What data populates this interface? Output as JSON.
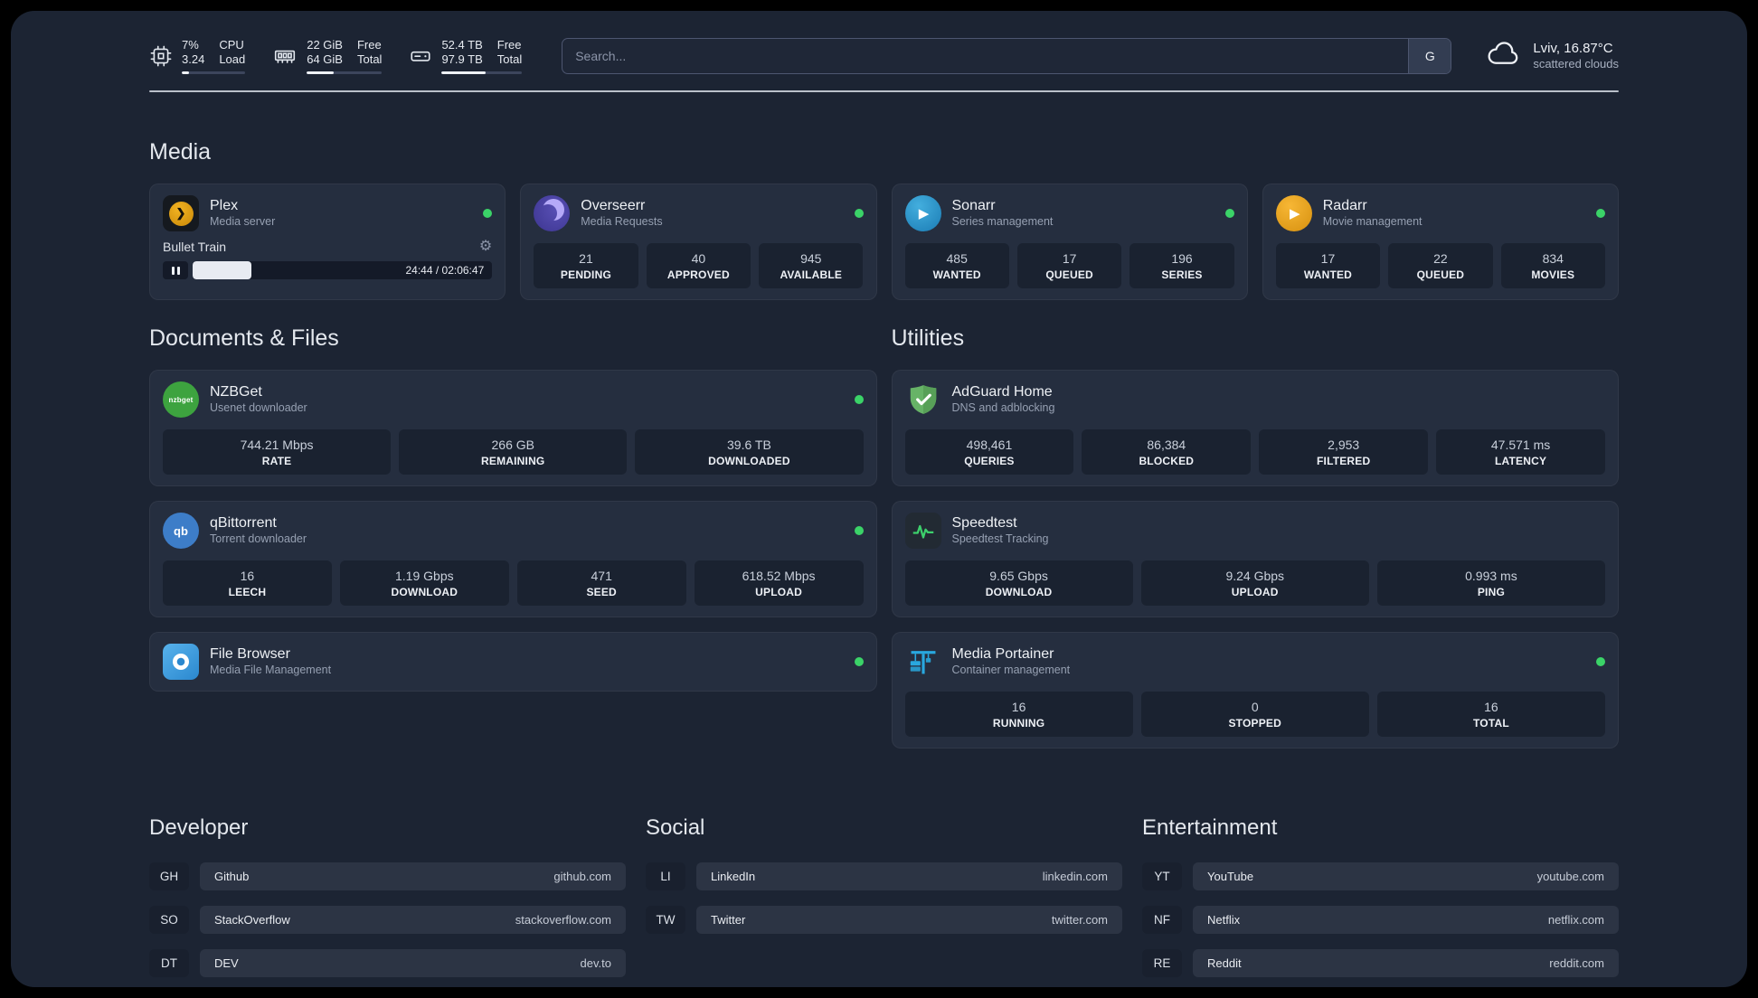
{
  "colors": {
    "background": "#1c2433",
    "card": "#252e3f",
    "tile": "#1a2230",
    "status_online": "#3bd368",
    "plex_amber": "#e5a00d",
    "adguard_green": "#67b367",
    "portainer_blue": "#29a8df",
    "divider": "#ccd1da"
  },
  "topbar": {
    "widgets": [
      {
        "icon": "cpu-chip-icon",
        "col1_top": "7%",
        "col1_bottom": "3.24",
        "col2_top": "CPU",
        "col2_bottom": "Load",
        "bar_pct": 12
      },
      {
        "icon": "memory-icon",
        "col1_top": "22 GiB",
        "col1_bottom": "64 GiB",
        "col2_top": "Free",
        "col2_bottom": "Total",
        "bar_pct": 36
      },
      {
        "icon": "disk-icon",
        "col1_top": "52.4 TB",
        "col1_bottom": "97.9 TB",
        "col2_top": "Free",
        "col2_bottom": "Total",
        "bar_pct": 55
      }
    ],
    "search": {
      "placeholder": "Search...",
      "engine_label": "G"
    },
    "weather": {
      "icon": "cloud-icon",
      "location": "Lviv, 16.87°C",
      "condition": "scattered clouds"
    }
  },
  "media": {
    "title": "Media",
    "plex": {
      "name": "Plex",
      "subtitle": "Media server",
      "status": "online",
      "icon": "plex-icon",
      "now_playing": "Bullet Train",
      "time": "24:44 / 02:06:47",
      "progress_pct": 19.5,
      "play_glyph": "❯"
    },
    "overseerr": {
      "name": "Overseerr",
      "subtitle": "Media Requests",
      "status": "online",
      "icon": "overseerr-icon",
      "stats": [
        {
          "value": "21",
          "label": "PENDING"
        },
        {
          "value": "40",
          "label": "APPROVED"
        },
        {
          "value": "945",
          "label": "AVAILABLE"
        }
      ]
    },
    "sonarr": {
      "name": "Sonarr",
      "subtitle": "Series management",
      "status": "online",
      "icon": "sonarr-icon",
      "glyph": "▶",
      "stats": [
        {
          "value": "485",
          "label": "WANTED"
        },
        {
          "value": "17",
          "label": "QUEUED"
        },
        {
          "value": "196",
          "label": "SERIES"
        }
      ]
    },
    "radarr": {
      "name": "Radarr",
      "subtitle": "Movie management",
      "status": "online",
      "icon": "radarr-icon",
      "glyph": "▶",
      "stats": [
        {
          "value": "17",
          "label": "WANTED"
        },
        {
          "value": "22",
          "label": "QUEUED"
        },
        {
          "value": "834",
          "label": "MOVIES"
        }
      ]
    }
  },
  "documents": {
    "title": "Documents & Files",
    "nzbget": {
      "name": "NZBGet",
      "subtitle": "Usenet downloader",
      "status": "online",
      "icon": "nzbget-icon",
      "icon_text": "nzbget",
      "stats": [
        {
          "value": "744.21 Mbps",
          "label": "RATE"
        },
        {
          "value": "266 GB",
          "label": "REMAINING"
        },
        {
          "value": "39.6 TB",
          "label": "DOWNLOADED"
        }
      ]
    },
    "qbittorrent": {
      "name": "qBittorrent",
      "subtitle": "Torrent downloader",
      "status": "online",
      "icon": "qbittorrent-icon",
      "icon_text": "qb",
      "stats": [
        {
          "value": "16",
          "label": "LEECH"
        },
        {
          "value": "1.19 Gbps",
          "label": "DOWNLOAD"
        },
        {
          "value": "471",
          "label": "SEED"
        },
        {
          "value": "618.52 Mbps",
          "label": "UPLOAD"
        }
      ]
    },
    "filebrowser": {
      "name": "File Browser",
      "subtitle": "Media File Management",
      "status": "online",
      "icon": "filebrowser-icon"
    }
  },
  "utilities": {
    "title": "Utilities",
    "adguard": {
      "name": "AdGuard Home",
      "subtitle": "DNS and adblocking",
      "icon": "adguard-shield-icon",
      "stats": [
        {
          "value": "498,461",
          "label": "QUERIES"
        },
        {
          "value": "86,384",
          "label": "BLOCKED"
        },
        {
          "value": "2,953",
          "label": "FILTERED"
        },
        {
          "value": "47.571 ms",
          "label": "LATENCY"
        }
      ]
    },
    "speedtest": {
      "name": "Speedtest",
      "subtitle": "Speedtest Tracking",
      "icon": "speedtest-pulse-icon",
      "stats": [
        {
          "value": "9.65 Gbps",
          "label": "DOWNLOAD"
        },
        {
          "value": "9.24 Gbps",
          "label": "UPLOAD"
        },
        {
          "value": "0.993 ms",
          "label": "PING"
        }
      ]
    },
    "portainer": {
      "name": "Media Portainer",
      "subtitle": "Container management",
      "status": "online",
      "icon": "portainer-crane-icon",
      "stats": [
        {
          "value": "16",
          "label": "RUNNING"
        },
        {
          "value": "0",
          "label": "STOPPED"
        },
        {
          "value": "16",
          "label": "TOTAL"
        }
      ]
    }
  },
  "bookmarks": {
    "developer": {
      "title": "Developer",
      "items": [
        {
          "abbr": "GH",
          "name": "Github",
          "url": "github.com"
        },
        {
          "abbr": "SO",
          "name": "StackOverflow",
          "url": "stackoverflow.com"
        },
        {
          "abbr": "DT",
          "name": "DEV",
          "url": "dev.to"
        }
      ]
    },
    "social": {
      "title": "Social",
      "items": [
        {
          "abbr": "LI",
          "name": "LinkedIn",
          "url": "linkedin.com"
        },
        {
          "abbr": "TW",
          "name": "Twitter",
          "url": "twitter.com"
        }
      ]
    },
    "entertainment": {
      "title": "Entertainment",
      "items": [
        {
          "abbr": "YT",
          "name": "YouTube",
          "url": "youtube.com"
        },
        {
          "abbr": "NF",
          "name": "Netflix",
          "url": "netflix.com"
        },
        {
          "abbr": "RE",
          "name": "Reddit",
          "url": "reddit.com"
        }
      ]
    }
  }
}
